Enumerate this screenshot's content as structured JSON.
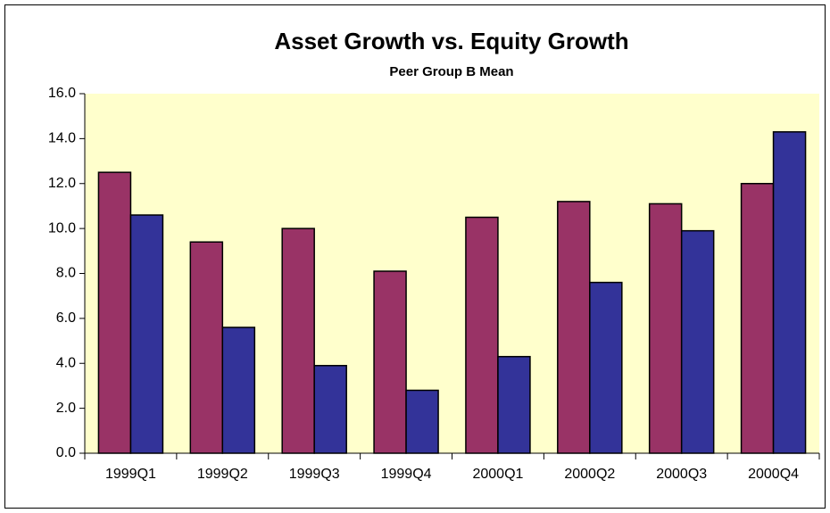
{
  "chart_data": {
    "type": "bar",
    "title": "Asset Growth vs. Equity Growth",
    "subtitle": "Peer Group B Mean",
    "categories": [
      "1999Q1",
      "1999Q2",
      "1999Q3",
      "1999Q4",
      "2000Q1",
      "2000Q2",
      "2000Q3",
      "2000Q4"
    ],
    "series": [
      {
        "color": "#993366",
        "values": [
          12.5,
          9.4,
          10.0,
          8.1,
          10.5,
          11.2,
          11.1,
          12.0
        ]
      },
      {
        "color": "#333399",
        "values": [
          10.6,
          5.6,
          3.9,
          2.8,
          4.3,
          7.6,
          9.9,
          14.3
        ]
      }
    ],
    "ylim": [
      0,
      16
    ],
    "yticks": [
      {
        "value": 0,
        "label": "0.0"
      },
      {
        "value": 2,
        "label": "2.0"
      },
      {
        "value": 4,
        "label": "4.0"
      },
      {
        "value": 6,
        "label": "6.0"
      },
      {
        "value": 8,
        "label": "8.0"
      },
      {
        "value": 10,
        "label": "10.0"
      },
      {
        "value": 12,
        "label": "12.0"
      },
      {
        "value": 14,
        "label": "14.0"
      },
      {
        "value": 16,
        "label": "16.0"
      }
    ],
    "plot_background": "#ffffcc"
  }
}
